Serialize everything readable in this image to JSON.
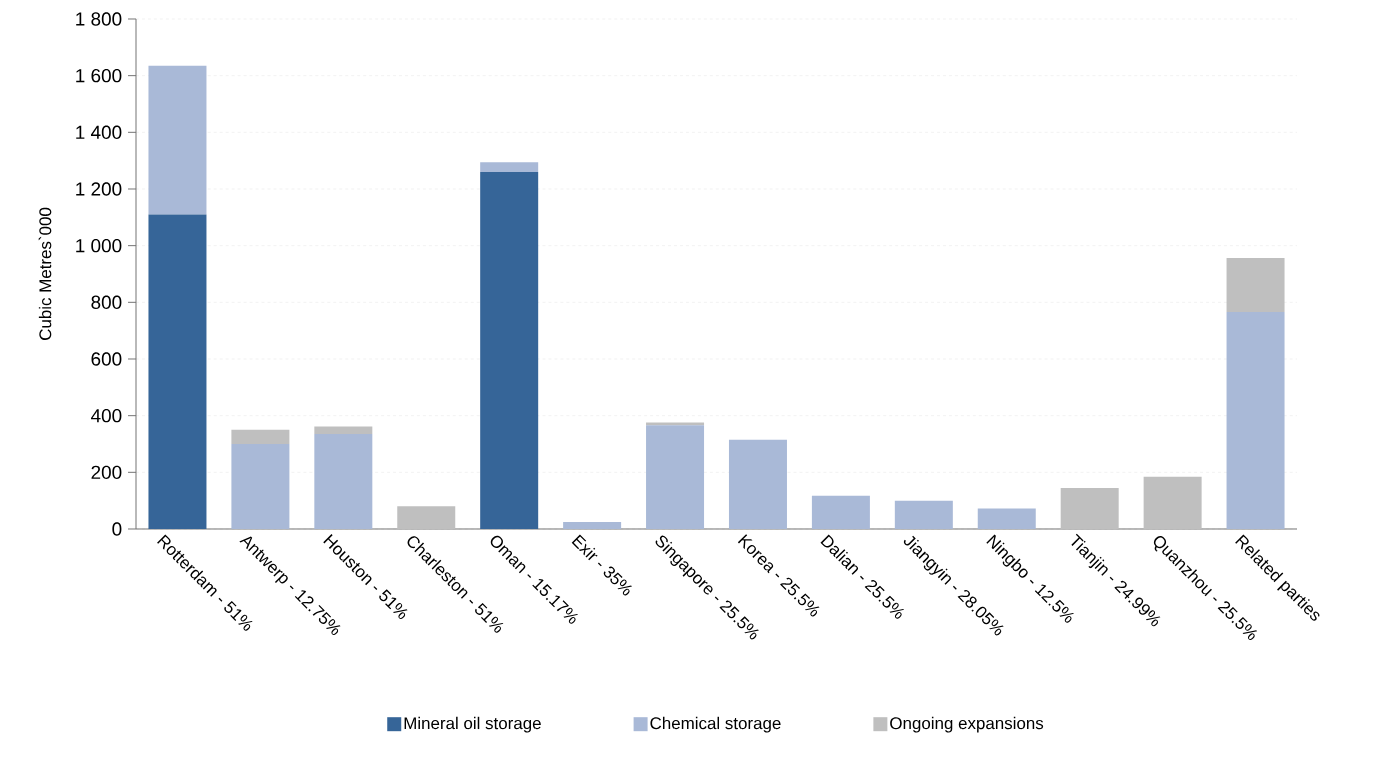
{
  "chart_data": {
    "type": "bar",
    "stacked": true,
    "ylabel": "Cubic Metres`000",
    "categories": [
      "Rotterdam - 51%",
      "Antwerp - 12.75%",
      "Houston - 51%",
      "Charleston - 51%",
      "Oman - 15.17%",
      "Exir - 35%",
      "Singapore - 25.5%",
      "Korea - 25.5%",
      "Dalian - 25.5%",
      "Jiangyin - 28.05%",
      "Ningbo - 12.5%",
      "Tianjin - 24.99%",
      "Quanzhou - 25.5%",
      "Related parties"
    ],
    "series": [
      {
        "name": "Mineral oil storage",
        "color": "#366598",
        "values": [
          1110,
          0,
          0,
          0,
          1260,
          0,
          0,
          0,
          0,
          0,
          0,
          0,
          0,
          0
        ]
      },
      {
        "name": "Chemical storage",
        "color": "#a9b9d7",
        "values": [
          525,
          300,
          335,
          0,
          34,
          25,
          366,
          315,
          117,
          100,
          72,
          0,
          0,
          766
        ]
      },
      {
        "name": "Ongoing expansions",
        "color": "#bfbfbf",
        "values": [
          0,
          50,
          27,
          80,
          0,
          0,
          10,
          0,
          0,
          0,
          0,
          145,
          184,
          190
        ]
      }
    ],
    "ylim": [
      0,
      1800
    ],
    "yticks": [
      0,
      200,
      400,
      600,
      800,
      {
        "value": 1000,
        "label": "1 000"
      },
      {
        "value": 1200,
        "label": "1 200"
      },
      {
        "value": 1400,
        "label": "1 400"
      },
      {
        "value": 1600,
        "label": "1 600"
      },
      {
        "value": 1800,
        "label": "1 800"
      }
    ],
    "grid": "y",
    "legend": "bottom"
  }
}
